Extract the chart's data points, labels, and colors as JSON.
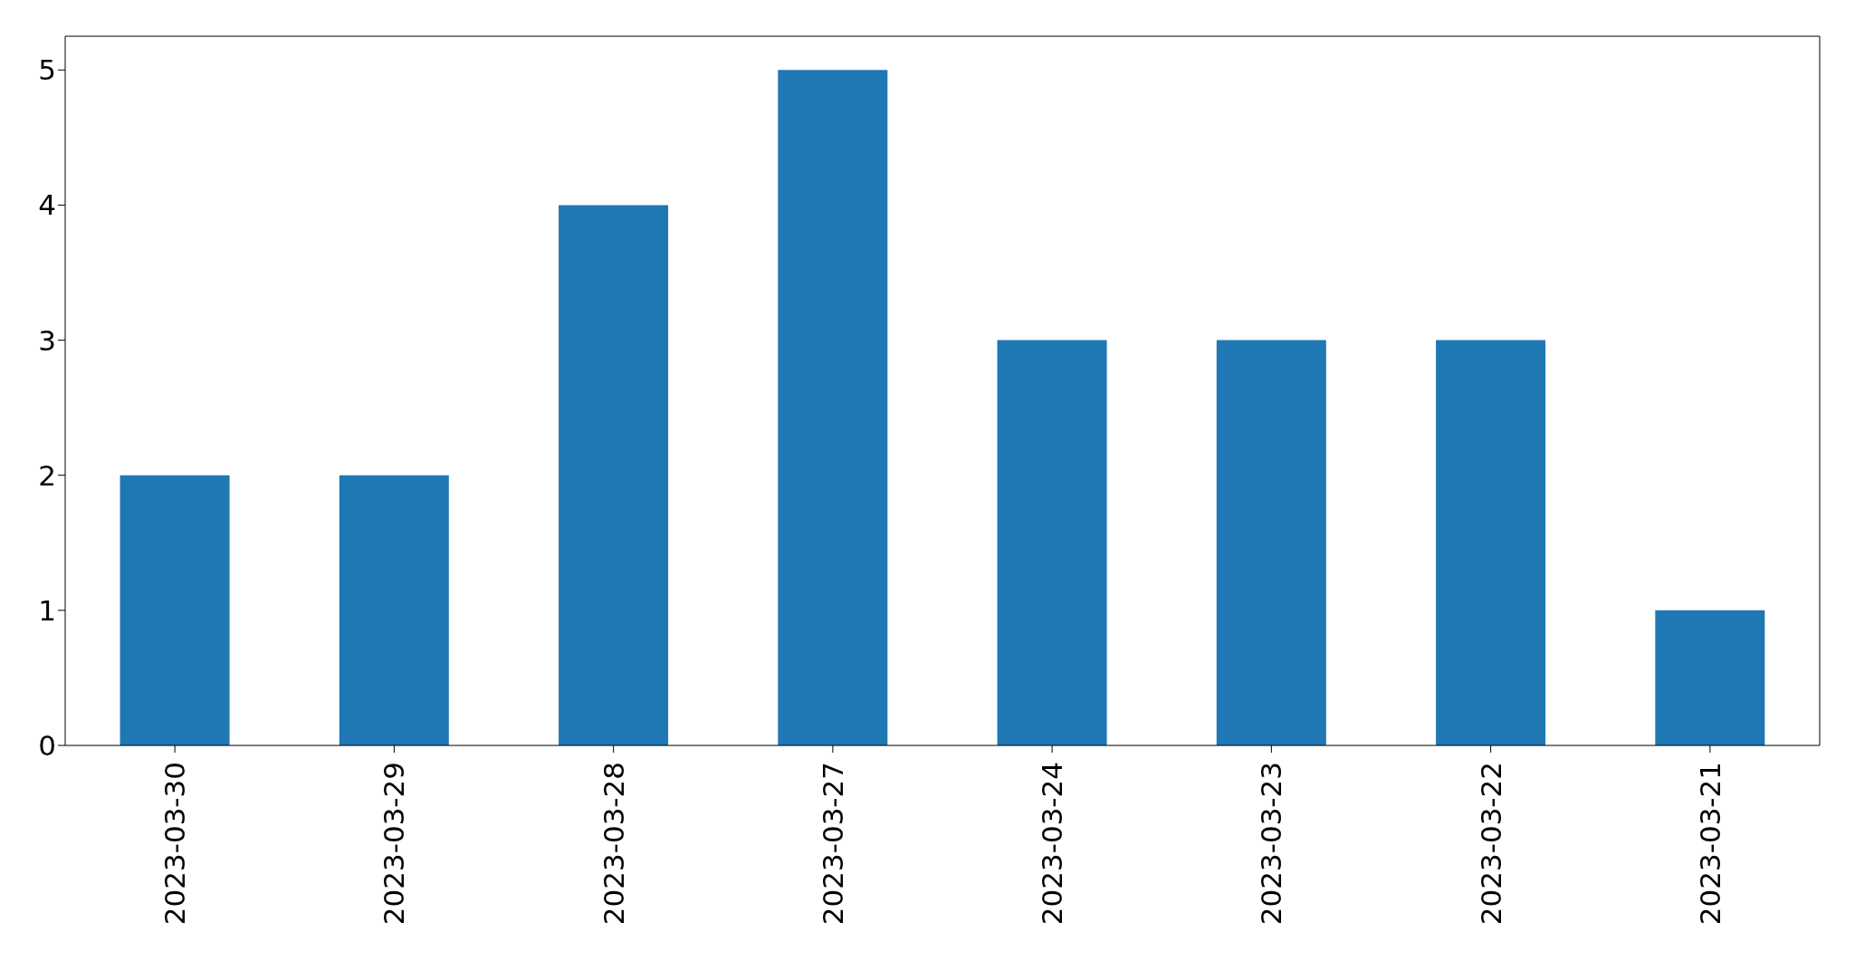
{
  "chart_data": {
    "type": "bar",
    "categories": [
      "2023-03-30",
      "2023-03-29",
      "2023-03-28",
      "2023-03-27",
      "2023-03-24",
      "2023-03-23",
      "2023-03-22",
      "2023-03-21"
    ],
    "values": [
      2,
      2,
      4,
      5,
      3,
      3,
      3,
      1
    ],
    "color": "#1f77b4",
    "ylim": [
      0,
      5.25
    ],
    "yticks": [
      0,
      1,
      2,
      3,
      4,
      5
    ],
    "grid": false,
    "legend": false
  }
}
